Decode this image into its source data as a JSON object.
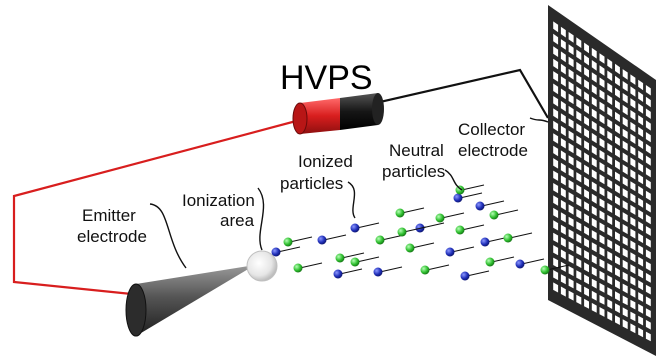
{
  "power_supply": {
    "label": "HVPS",
    "colors": {
      "positive": "#d81e1e",
      "negative": "#111111"
    }
  },
  "labels": {
    "emitter": [
      "Emitter",
      "electrode"
    ],
    "ionization": [
      "Ionization",
      "area"
    ],
    "ionized": [
      "Ionized",
      "particles"
    ],
    "neutral": [
      "Neutral",
      "particles"
    ],
    "collector": [
      "Collector",
      "electrode"
    ]
  },
  "colors": {
    "wire_positive": "#d81e1e",
    "wire_negative": "#111111",
    "ionized_particle": "#1f2fb8",
    "neutral_particle": "#2fbf2f",
    "emitter_cone": "#3a3a3a",
    "collector_grid": "#2a2a2a"
  }
}
